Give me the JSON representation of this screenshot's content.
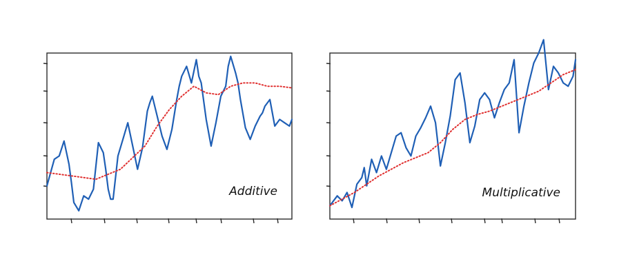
{
  "colors": {
    "series": "#1f5fb5",
    "trend": "#e03030",
    "axis": "#2a2a2a"
  },
  "chart_data": [
    {
      "type": "line",
      "label": "Additive",
      "grid": false,
      "legend": "none",
      "xlim": [
        0,
        100
      ],
      "ylim": [
        0,
        100
      ],
      "series": [
        {
          "role": "observed",
          "x": [
            0,
            3,
            5,
            7,
            9,
            10,
            11,
            13,
            15,
            17,
            19,
            21,
            23,
            24,
            25,
            26,
            27,
            28,
            29,
            31,
            33,
            35,
            37,
            39,
            41,
            42,
            43,
            45,
            47,
            49,
            51,
            53,
            54,
            55,
            57,
            59,
            61,
            62,
            63,
            65,
            67,
            69,
            71,
            73,
            74,
            75,
            77,
            78,
            79,
            81,
            83,
            85,
            87,
            88,
            89,
            91,
            93,
            95,
            97,
            99,
            100
          ],
          "y": [
            20,
            36,
            38,
            47,
            33,
            22,
            10,
            5,
            14,
            12,
            18,
            46,
            40,
            30,
            18,
            12,
            12,
            25,
            38,
            48,
            58,
            44,
            30,
            43,
            65,
            70,
            74,
            62,
            50,
            42,
            54,
            72,
            80,
            86,
            92,
            82,
            96,
            86,
            82,
            60,
            44,
            58,
            74,
            80,
            92,
            98,
            88,
            82,
            72,
            55,
            48,
            56,
            62,
            64,
            68,
            72,
            56,
            60,
            58,
            56,
            60
          ]
        },
        {
          "role": "trend",
          "x": [
            0,
            10,
            20,
            30,
            40,
            45,
            50,
            55,
            60,
            65,
            70,
            75,
            80,
            85,
            90,
            95,
            100
          ],
          "y": [
            28,
            26,
            24,
            30,
            44,
            56,
            66,
            74,
            80,
            76,
            75,
            80,
            82,
            82,
            80,
            80,
            79
          ]
        }
      ]
    },
    {
      "type": "line",
      "label": "Multiplicative",
      "grid": false,
      "legend": "none",
      "xlim": [
        0,
        100
      ],
      "ylim": [
        0,
        100
      ],
      "series": [
        {
          "role": "observed",
          "x": [
            0,
            3,
            5,
            7,
            9,
            11,
            13,
            14,
            15,
            17,
            19,
            21,
            23,
            25,
            27,
            29,
            31,
            33,
            35,
            37,
            39,
            41,
            43,
            45,
            47,
            49,
            51,
            53,
            55,
            57,
            59,
            61,
            63,
            65,
            67,
            69,
            71,
            73,
            75,
            77,
            79,
            81,
            83,
            85,
            87,
            89,
            91,
            93,
            95,
            97,
            99,
            100
          ],
          "y": [
            8,
            14,
            11,
            16,
            7,
            21,
            25,
            31,
            20,
            36,
            28,
            38,
            30,
            40,
            50,
            52,
            43,
            38,
            50,
            55,
            61,
            68,
            58,
            32,
            46,
            62,
            84,
            88,
            70,
            46,
            56,
            72,
            76,
            72,
            61,
            70,
            78,
            82,
            96,
            52,
            68,
            82,
            94,
            100,
            108,
            78,
            92,
            88,
            82,
            80,
            86,
            96
          ]
        },
        {
          "role": "trend",
          "x": [
            0,
            10,
            20,
            30,
            40,
            45,
            50,
            55,
            60,
            65,
            70,
            75,
            80,
            85,
            90,
            95,
            100
          ],
          "y": [
            8,
            16,
            26,
            34,
            40,
            46,
            54,
            60,
            63,
            65,
            68,
            71,
            74,
            77,
            82,
            87,
            90
          ]
        }
      ]
    }
  ]
}
